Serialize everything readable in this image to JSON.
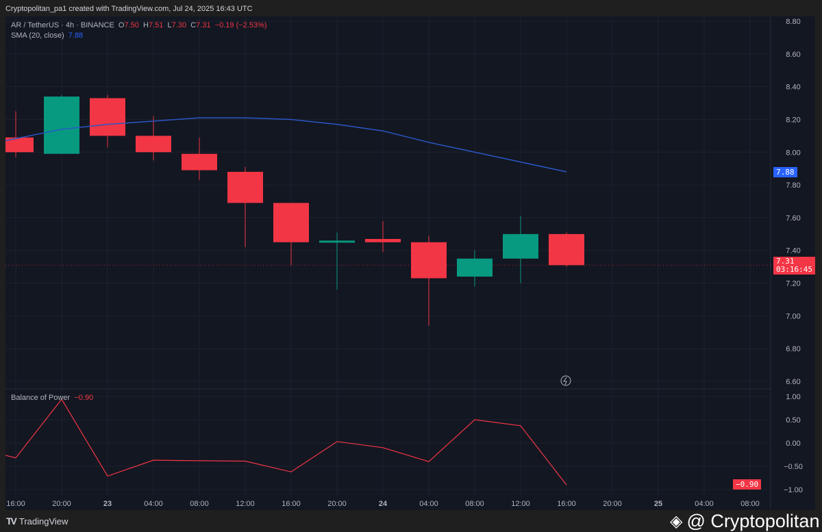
{
  "header": "Cryptopolitan_pa1 created with TradingView.com, Jul 24, 2025 16:43 UTC",
  "legend": {
    "symbol": "AR / TetherUS · 4h · BINANCE",
    "o_label": "O",
    "o": "7.50",
    "h_label": "H",
    "h": "7.51",
    "l_label": "L",
    "l": "7.30",
    "c_label": "C",
    "c": "7.31",
    "change": "−0.19 (−2.53%)",
    "sma_label": "SMA (20, close)",
    "sma_value": "7.88",
    "bop_label": "Balance of Power",
    "bop_value": "−0.90"
  },
  "tags": {
    "sma": "7.88",
    "price": "7.31",
    "countdown": "03:16:45",
    "bop": "−0.90"
  },
  "footer": {
    "brand": "TradingView",
    "watermark": "@ Cryptopolitan"
  },
  "colors": {
    "up": "#089981",
    "down": "#f23645",
    "sma": "#2a56c6",
    "bg": "#131722"
  },
  "chart_data": [
    {
      "type": "candlestick",
      "title": "AR / TetherUS · 4h · BINANCE",
      "ylim": [
        6.6,
        8.8
      ],
      "y_ticks": [
        "8.80",
        "8.60",
        "8.40",
        "8.20",
        "8.00",
        "7.80",
        "7.60",
        "7.40",
        "7.20",
        "7.00",
        "6.80",
        "6.60"
      ],
      "x_ticks": [
        "16:00",
        "20:00",
        "23",
        "04:00",
        "08:00",
        "12:00",
        "16:00",
        "20:00",
        "24",
        "04:00",
        "08:00",
        "12:00",
        "16:00",
        "20:00",
        "25",
        "04:00",
        "08:00"
      ],
      "candles": [
        {
          "t": "22 16:00",
          "o": 8.09,
          "h": 8.25,
          "l": 7.97,
          "c": 8.0
        },
        {
          "t": "22 20:00",
          "o": 7.99,
          "h": 8.35,
          "l": 7.99,
          "c": 8.34
        },
        {
          "t": "23 00:00",
          "o": 8.33,
          "h": 8.35,
          "l": 8.03,
          "c": 8.1
        },
        {
          "t": "23 04:00",
          "o": 8.1,
          "h": 8.22,
          "l": 7.95,
          "c": 8.0
        },
        {
          "t": "23 08:00",
          "o": 7.99,
          "h": 8.09,
          "l": 7.83,
          "c": 7.89
        },
        {
          "t": "23 12:00",
          "o": 7.88,
          "h": 7.91,
          "l": 7.42,
          "c": 7.69
        },
        {
          "t": "23 16:00",
          "o": 7.69,
          "h": 7.69,
          "l": 7.31,
          "c": 7.45
        },
        {
          "t": "23 20:00",
          "o": 7.45,
          "h": 7.51,
          "l": 7.16,
          "c": 7.46
        },
        {
          "t": "24 00:00",
          "o": 7.47,
          "h": 7.58,
          "l": 7.39,
          "c": 7.45
        },
        {
          "t": "24 04:00",
          "o": 7.45,
          "h": 7.49,
          "l": 6.94,
          "c": 7.23
        },
        {
          "t": "24 08:00",
          "o": 7.24,
          "h": 7.4,
          "l": 7.18,
          "c": 7.35
        },
        {
          "t": "24 12:00",
          "o": 7.35,
          "h": 7.61,
          "l": 7.2,
          "c": 7.5
        },
        {
          "t": "24 16:00",
          "o": 7.5,
          "h": 7.51,
          "l": 7.3,
          "c": 7.31
        }
      ],
      "sma": [
        8.07,
        8.14,
        8.17,
        8.19,
        8.21,
        8.21,
        8.2,
        8.17,
        8.13,
        8.06,
        8.0,
        7.94,
        7.88
      ]
    },
    {
      "type": "line",
      "title": "Balance of Power",
      "ylim": [
        -1,
        1
      ],
      "y_ticks": [
        "1.00",
        "0.50",
        "0.00",
        "−0.50",
        "−1.00"
      ],
      "values": [
        -0.32,
        0.94,
        -0.71,
        -0.37,
        -0.38,
        -0.39,
        -0.62,
        0.03,
        -0.1,
        -0.4,
        0.5,
        0.37,
        -0.9
      ]
    }
  ]
}
